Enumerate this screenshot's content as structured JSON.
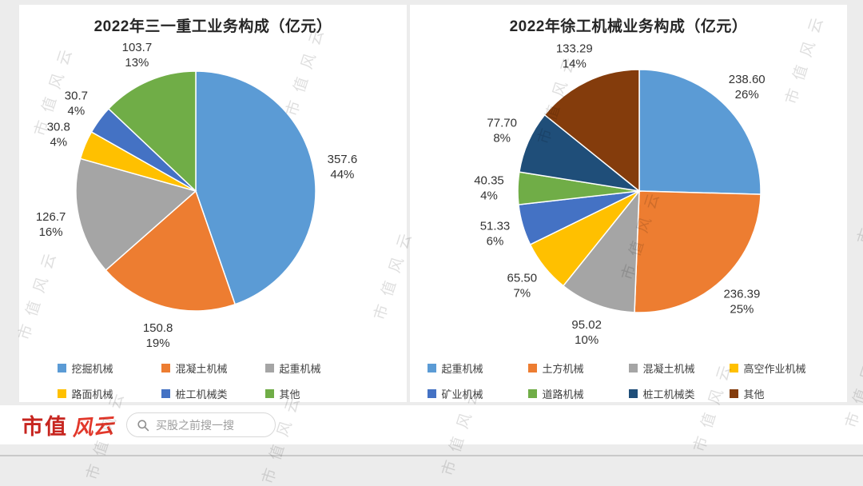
{
  "watermark": {
    "text": "市值风云"
  },
  "chart_data": [
    {
      "type": "pie",
      "title": "2022年三一重工业务构成（亿元）",
      "start_angle_deg": 0,
      "direction": "clockwise",
      "labels": "outside, value above percent",
      "legend_position": "bottom",
      "legend_columns": 3,
      "series": [
        {
          "label": "挖掘机械",
          "value": 357.6,
          "value_label": "357.6",
          "percent": "44%",
          "color": "#5B9BD5"
        },
        {
          "label": "混凝土机械",
          "value": 150.8,
          "value_label": "150.8",
          "percent": "19%",
          "color": "#ED7D31"
        },
        {
          "label": "起重机械",
          "value": 126.7,
          "value_label": "126.7",
          "percent": "16%",
          "color": "#A5A5A5"
        },
        {
          "label": "路面机械",
          "value": 30.8,
          "value_label": "30.8",
          "percent": "4%",
          "color": "#FFC000"
        },
        {
          "label": "桩工机械类",
          "value": 30.7,
          "value_label": "30.7",
          "percent": "4%",
          "color": "#4472C4"
        },
        {
          "label": "其他",
          "value": 103.7,
          "value_label": "103.7",
          "percent": "13%",
          "color": "#70AD47"
        }
      ]
    },
    {
      "type": "pie",
      "title": "2022年徐工机械业务构成（亿元）",
      "start_angle_deg": 0,
      "direction": "clockwise",
      "labels": "outside, value above percent",
      "legend_position": "bottom",
      "legend_columns": 4,
      "series": [
        {
          "label": "起重机械",
          "value": 238.6,
          "value_label": "238.60",
          "percent": "26%",
          "color": "#5B9BD5"
        },
        {
          "label": "土方机械",
          "value": 236.39,
          "value_label": "236.39",
          "percent": "25%",
          "color": "#ED7D31"
        },
        {
          "label": "混凝土机械",
          "value": 95.02,
          "value_label": "95.02",
          "percent": "10%",
          "color": "#A5A5A5"
        },
        {
          "label": "高空作业机械",
          "value": 65.5,
          "value_label": "65.50",
          "percent": "7%",
          "color": "#FFC000"
        },
        {
          "label": "矿业机械",
          "value": 51.33,
          "value_label": "51.33",
          "percent": "6%",
          "color": "#4472C4"
        },
        {
          "label": "道路机械",
          "value": 40.35,
          "value_label": "40.35",
          "percent": "4%",
          "color": "#70AD47"
        },
        {
          "label": "桩工机械类",
          "value": 77.7,
          "value_label": "77.70",
          "percent": "8%",
          "color": "#1F4E79"
        },
        {
          "label": "其他",
          "value": 133.29,
          "value_label": "133.29",
          "percent": "14%",
          "color": "#843C0C"
        }
      ]
    }
  ],
  "footer": {
    "logo_part1": "市值",
    "logo_part2": "风云",
    "brand_red": "#c7251f",
    "search_placeholder": "买股之前搜一搜"
  }
}
